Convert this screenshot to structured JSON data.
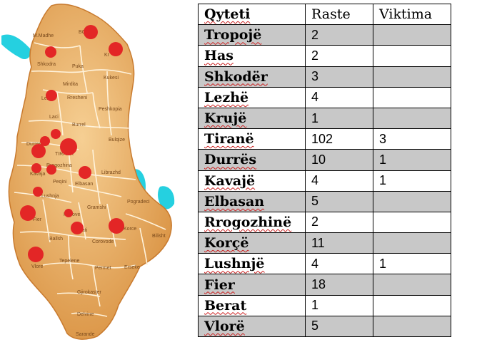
{
  "map": {
    "district_labels": [
      "M.Madhe",
      "Shkodra",
      "Puka",
      "Kukesi",
      "Mirdita",
      "Rresheni",
      "Lezha",
      "Peshkopia",
      "Laci",
      "Burrel",
      "Bulqize",
      "Durres",
      "TIRANA",
      "Rrogozhina",
      "Kavaja",
      "Peqini",
      "Librazhd",
      "Elbasan",
      "Lushnja",
      "Pogradeci",
      "Gramshi",
      "Fier",
      "Kucove",
      "Berati",
      "Korce",
      "Ballsh",
      "Corovode",
      "Bilisht",
      "Vlore",
      "Tepelene",
      "Permet",
      "Erseke",
      "Gjirokaster",
      "Delvine",
      "Sarande",
      "BC",
      "Kr"
    ],
    "land_color": "#e3a35a",
    "water_color": "#25d0e0",
    "marker_color": "#e32626"
  },
  "table": {
    "headers": [
      "Qyteti",
      "Raste",
      "Viktima"
    ],
    "rows": [
      {
        "city": "Tropojë",
        "cases": "2",
        "victims": "",
        "shaded": true
      },
      {
        "city": "Has",
        "cases": "2",
        "victims": "",
        "shaded": false
      },
      {
        "city": "Shkodër",
        "cases": "3",
        "victims": "",
        "shaded": true
      },
      {
        "city": "Lezhë",
        "cases": "4",
        "victims": "",
        "shaded": false
      },
      {
        "city": "Krujë",
        "cases": "1",
        "victims": "",
        "shaded": true
      },
      {
        "city": "Tiranë",
        "cases": "102",
        "victims": "3",
        "shaded": false
      },
      {
        "city": "Durrës",
        "cases": "10",
        "victims": "1",
        "shaded": true
      },
      {
        "city": "Kavajë",
        "cases": "4",
        "victims": "1",
        "shaded": false
      },
      {
        "city": "Elbasan",
        "cases": "5",
        "victims": "",
        "shaded": true
      },
      {
        "city": "Rrogozhinë",
        "cases": "2",
        "victims": "",
        "shaded": false
      },
      {
        "city": "Korçë",
        "cases": "11",
        "victims": "",
        "shaded": true
      },
      {
        "city": "Lushnjë",
        "cases": "4",
        "victims": "1",
        "shaded": false
      },
      {
        "city": "Fier",
        "cases": "18",
        "victims": "",
        "shaded": true
      },
      {
        "city": "Berat",
        "cases": "1",
        "victims": "",
        "shaded": false
      },
      {
        "city": "Vlorë",
        "cases": "5",
        "victims": "",
        "shaded": true
      }
    ]
  }
}
